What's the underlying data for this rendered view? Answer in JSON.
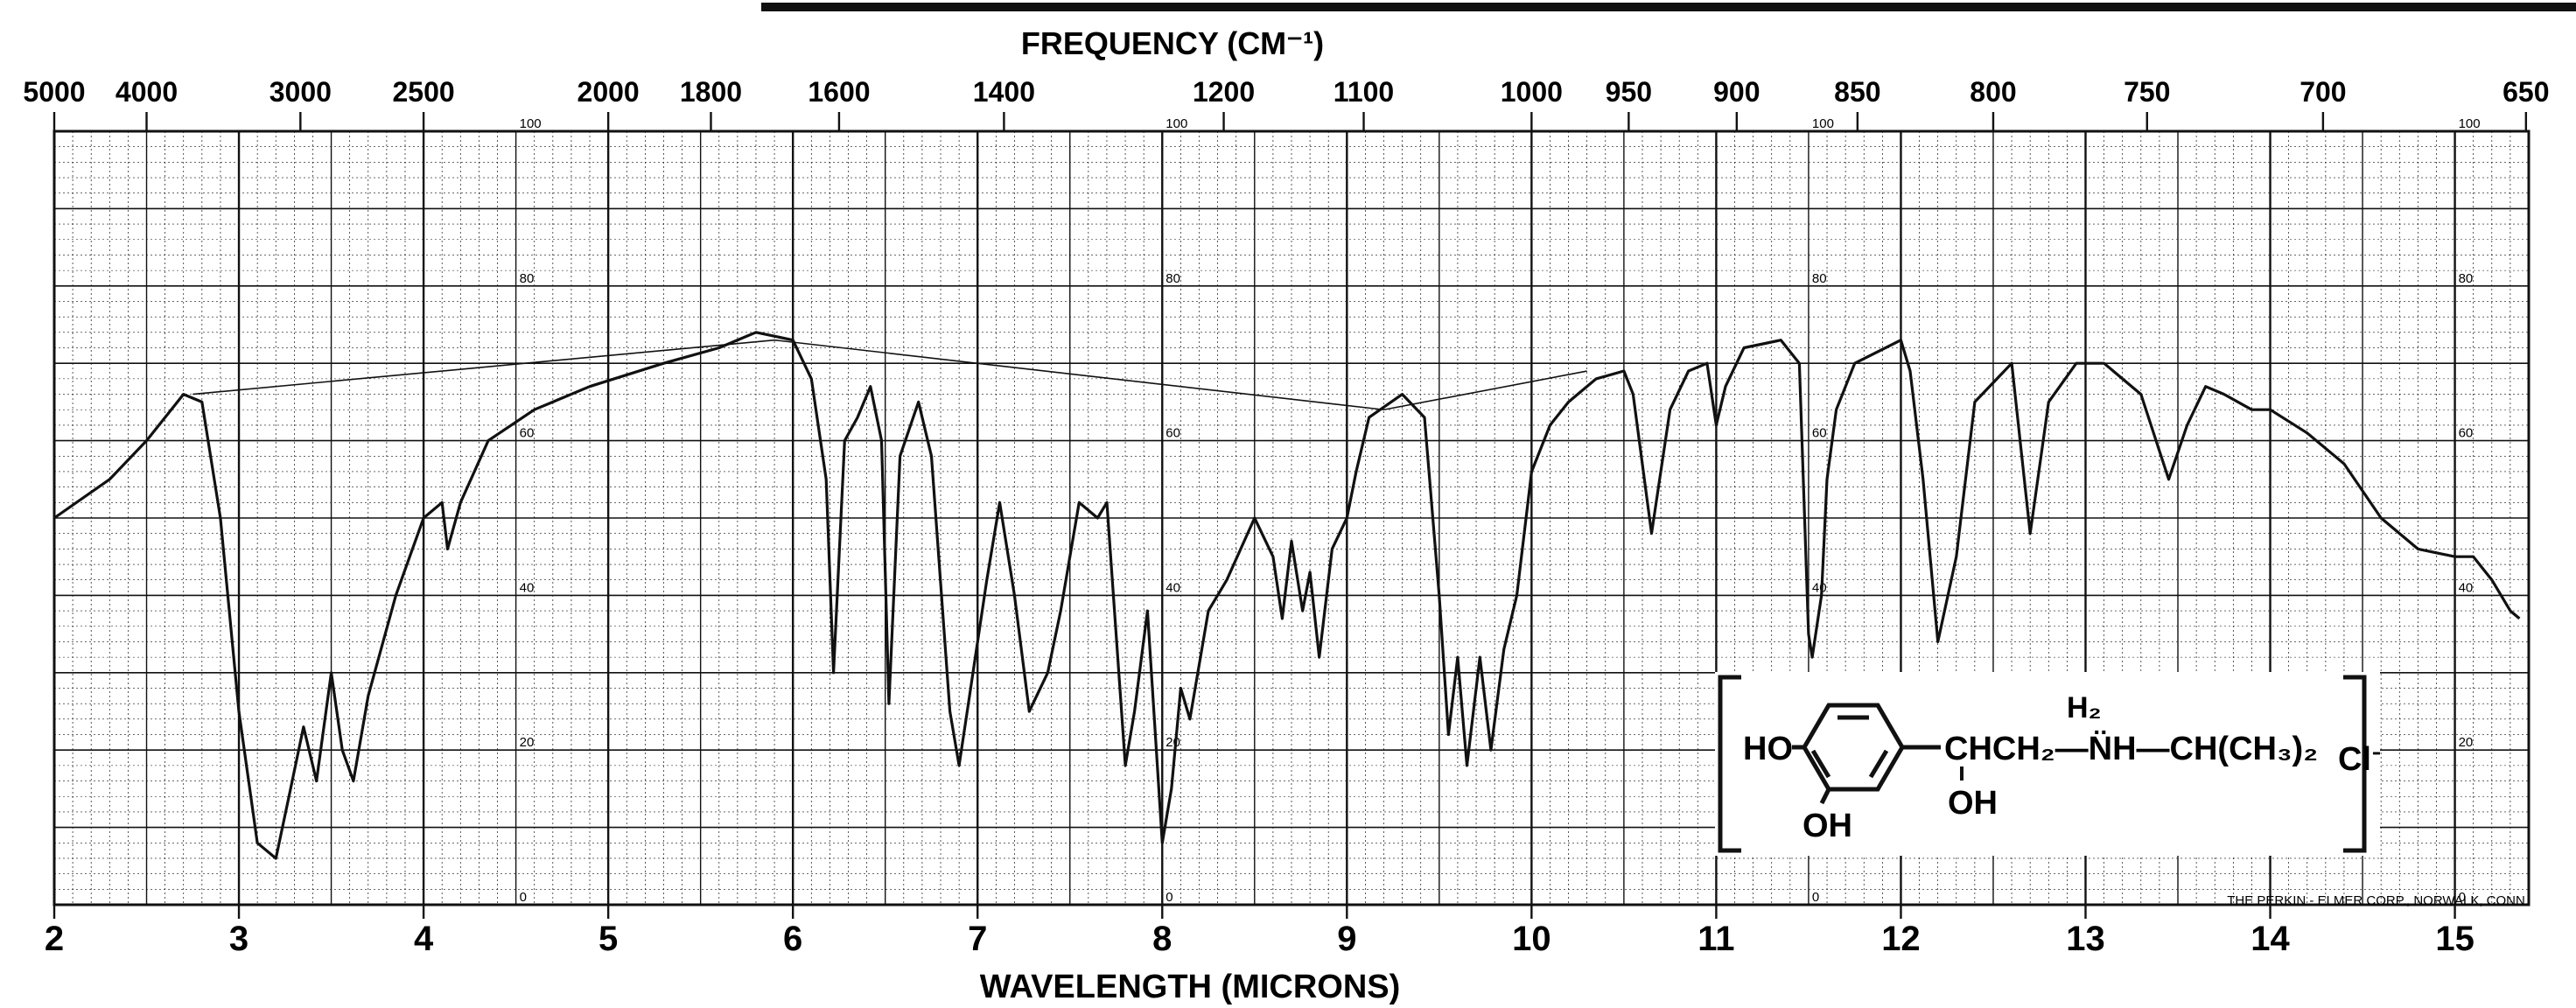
{
  "chart_data": {
    "type": "line",
    "title": "FREQUENCY (CM⁻¹)",
    "xlabel": "WAVELENGTH (MICRONS)",
    "xlim": [
      2,
      15.4
    ],
    "ylim": [
      0,
      100
    ],
    "grid": true,
    "x_ticks": [
      "2",
      "3",
      "4",
      "5",
      "6",
      "7",
      "8",
      "9",
      "10",
      "11",
      "12",
      "13",
      "14",
      "15"
    ],
    "freq_ticks": [
      {
        "label": "5000",
        "micron": 2.0
      },
      {
        "label": "4000",
        "micron": 2.5
      },
      {
        "label": "3000",
        "micron": 3.333
      },
      {
        "label": "2500",
        "micron": 4.0
      },
      {
        "label": "2000",
        "micron": 5.0
      },
      {
        "label": "1800",
        "micron": 5.556
      },
      {
        "label": "1600",
        "micron": 6.25
      },
      {
        "label": "1400",
        "micron": 7.143
      },
      {
        "label": "1200",
        "micron": 8.333
      },
      {
        "label": "1100",
        "micron": 9.091
      },
      {
        "label": "1000",
        "micron": 10.0
      },
      {
        "label": "950",
        "micron": 10.526
      },
      {
        "label": "900",
        "micron": 11.111
      },
      {
        "label": "850",
        "micron": 11.765
      },
      {
        "label": "800",
        "micron": 12.5
      },
      {
        "label": "750",
        "micron": 13.333
      },
      {
        "label": "700",
        "micron": 14.286
      },
      {
        "label": "650",
        "micron": 15.385
      }
    ],
    "pct_labels": [
      "100",
      "80",
      "60",
      "40",
      "20",
      "0"
    ],
    "pct_label_positions_micron": [
      4.5,
      8.0,
      11.5,
      15.0
    ],
    "series": [
      {
        "values": [
          [
            2.0,
            50
          ],
          [
            2.3,
            55
          ],
          [
            2.5,
            60
          ],
          [
            2.7,
            66
          ],
          [
            2.8,
            65
          ],
          [
            2.9,
            50
          ],
          [
            3.0,
            25
          ],
          [
            3.1,
            8
          ],
          [
            3.2,
            6
          ],
          [
            3.28,
            15
          ],
          [
            3.35,
            23
          ],
          [
            3.42,
            16
          ],
          [
            3.5,
            30
          ],
          [
            3.56,
            20
          ],
          [
            3.62,
            16
          ],
          [
            3.7,
            27
          ],
          [
            3.85,
            40
          ],
          [
            4.0,
            50
          ],
          [
            4.1,
            52
          ],
          [
            4.13,
            46
          ],
          [
            4.2,
            52
          ],
          [
            4.35,
            60
          ],
          [
            4.6,
            64
          ],
          [
            4.9,
            67
          ],
          [
            5.3,
            70
          ],
          [
            5.6,
            72
          ],
          [
            5.8,
            74
          ],
          [
            6.0,
            73
          ],
          [
            6.1,
            68
          ],
          [
            6.18,
            55
          ],
          [
            6.22,
            30
          ],
          [
            6.28,
            60
          ],
          [
            6.35,
            63
          ],
          [
            6.42,
            67
          ],
          [
            6.48,
            60
          ],
          [
            6.52,
            26
          ],
          [
            6.58,
            58
          ],
          [
            6.68,
            65
          ],
          [
            6.75,
            58
          ],
          [
            6.85,
            25
          ],
          [
            6.9,
            18
          ],
          [
            6.95,
            26
          ],
          [
            7.05,
            42
          ],
          [
            7.12,
            52
          ],
          [
            7.2,
            40
          ],
          [
            7.28,
            25
          ],
          [
            7.38,
            30
          ],
          [
            7.45,
            38
          ],
          [
            7.55,
            52
          ],
          [
            7.65,
            50
          ],
          [
            7.7,
            52
          ],
          [
            7.8,
            18
          ],
          [
            7.85,
            25
          ],
          [
            7.92,
            38
          ],
          [
            8.0,
            8
          ],
          [
            8.05,
            15
          ],
          [
            8.1,
            28
          ],
          [
            8.15,
            24
          ],
          [
            8.25,
            38
          ],
          [
            8.35,
            42
          ],
          [
            8.5,
            50
          ],
          [
            8.6,
            45
          ],
          [
            8.65,
            37
          ],
          [
            8.7,
            47
          ],
          [
            8.76,
            38
          ],
          [
            8.8,
            43
          ],
          [
            8.85,
            32
          ],
          [
            8.92,
            46
          ],
          [
            9.0,
            50
          ],
          [
            9.05,
            56
          ],
          [
            9.12,
            63
          ],
          [
            9.3,
            66
          ],
          [
            9.42,
            63
          ],
          [
            9.5,
            40
          ],
          [
            9.55,
            22
          ],
          [
            9.6,
            32
          ],
          [
            9.65,
            18
          ],
          [
            9.72,
            32
          ],
          [
            9.78,
            20
          ],
          [
            9.85,
            33
          ],
          [
            9.92,
            40
          ],
          [
            10.0,
            56
          ],
          [
            10.1,
            62
          ],
          [
            10.2,
            65
          ],
          [
            10.35,
            68
          ],
          [
            10.5,
            69
          ],
          [
            10.55,
            66
          ],
          [
            10.65,
            48
          ],
          [
            10.75,
            64
          ],
          [
            10.85,
            69
          ],
          [
            10.95,
            70
          ],
          [
            11.0,
            62
          ],
          [
            11.05,
            67
          ],
          [
            11.15,
            72
          ],
          [
            11.35,
            73
          ],
          [
            11.45,
            70
          ],
          [
            11.5,
            35
          ],
          [
            11.52,
            32
          ],
          [
            11.57,
            40
          ],
          [
            11.6,
            55
          ],
          [
            11.65,
            64
          ],
          [
            11.75,
            70
          ],
          [
            12.0,
            73
          ],
          [
            12.05,
            69
          ],
          [
            12.12,
            55
          ],
          [
            12.2,
            34
          ],
          [
            12.3,
            45
          ],
          [
            12.4,
            65
          ],
          [
            12.6,
            70
          ],
          [
            12.7,
            48
          ],
          [
            12.8,
            65
          ],
          [
            12.95,
            70
          ],
          [
            13.1,
            70
          ],
          [
            13.3,
            66
          ],
          [
            13.45,
            55
          ],
          [
            13.55,
            62
          ],
          [
            13.65,
            67
          ],
          [
            13.75,
            66
          ],
          [
            13.9,
            64
          ],
          [
            14.0,
            64
          ],
          [
            14.2,
            61
          ],
          [
            14.4,
            57
          ],
          [
            14.6,
            50
          ],
          [
            14.8,
            46
          ],
          [
            15.0,
            45
          ],
          [
            15.1,
            45
          ],
          [
            15.2,
            42
          ],
          [
            15.3,
            38
          ],
          [
            15.35,
            37
          ]
        ]
      }
    ]
  },
  "structure": {
    "ho_left": "HO",
    "oh_bottom": "OH",
    "chain": "CHCH₂—N̈H—CH(CH₃)₂",
    "h2_label": "H₂",
    "oh_sub": "OH",
    "counter_ion": "Cl⁻"
  },
  "credit": "THE PERKIN - ELMER CORP., NORWALK, CONN."
}
